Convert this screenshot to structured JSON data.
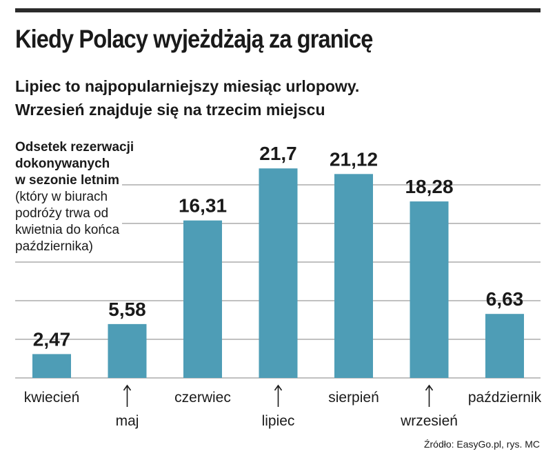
{
  "chart_data": {
    "type": "bar",
    "title": "Kiedy Polacy wyjeżdżają za granicę",
    "subtitle": [
      "Lipiec to najpopularniejszy miesiąc urlopowy.",
      "Wrzesień znajduje się na trzecim miejscu"
    ],
    "ylabel_bold": [
      "Odsetek rezerwacji",
      "dokonywanych",
      "w sezonie letnim"
    ],
    "ylabel_note": [
      "(który w biurach",
      "podróży trwa od",
      "kwietnia do końca",
      "października)"
    ],
    "categories": [
      "kwiecień",
      "maj",
      "czerwiec",
      "lipiec",
      "sierpień",
      "wrzesień",
      "październik"
    ],
    "values": [
      2.47,
      5.58,
      16.31,
      21.7,
      21.12,
      18.28,
      6.63
    ],
    "value_labels": [
      "2,47",
      "5,58",
      "16,31",
      "21,7",
      "21,12",
      "18,28",
      "6,63"
    ],
    "label_position": [
      "upper",
      "lower",
      "upper",
      "lower",
      "upper",
      "lower",
      "upper"
    ],
    "ylim": [
      0,
      24
    ],
    "grid": true,
    "bar_color": "#4e9db6",
    "source": "Źródło: EasyGo.pl,  rys. MC"
  }
}
